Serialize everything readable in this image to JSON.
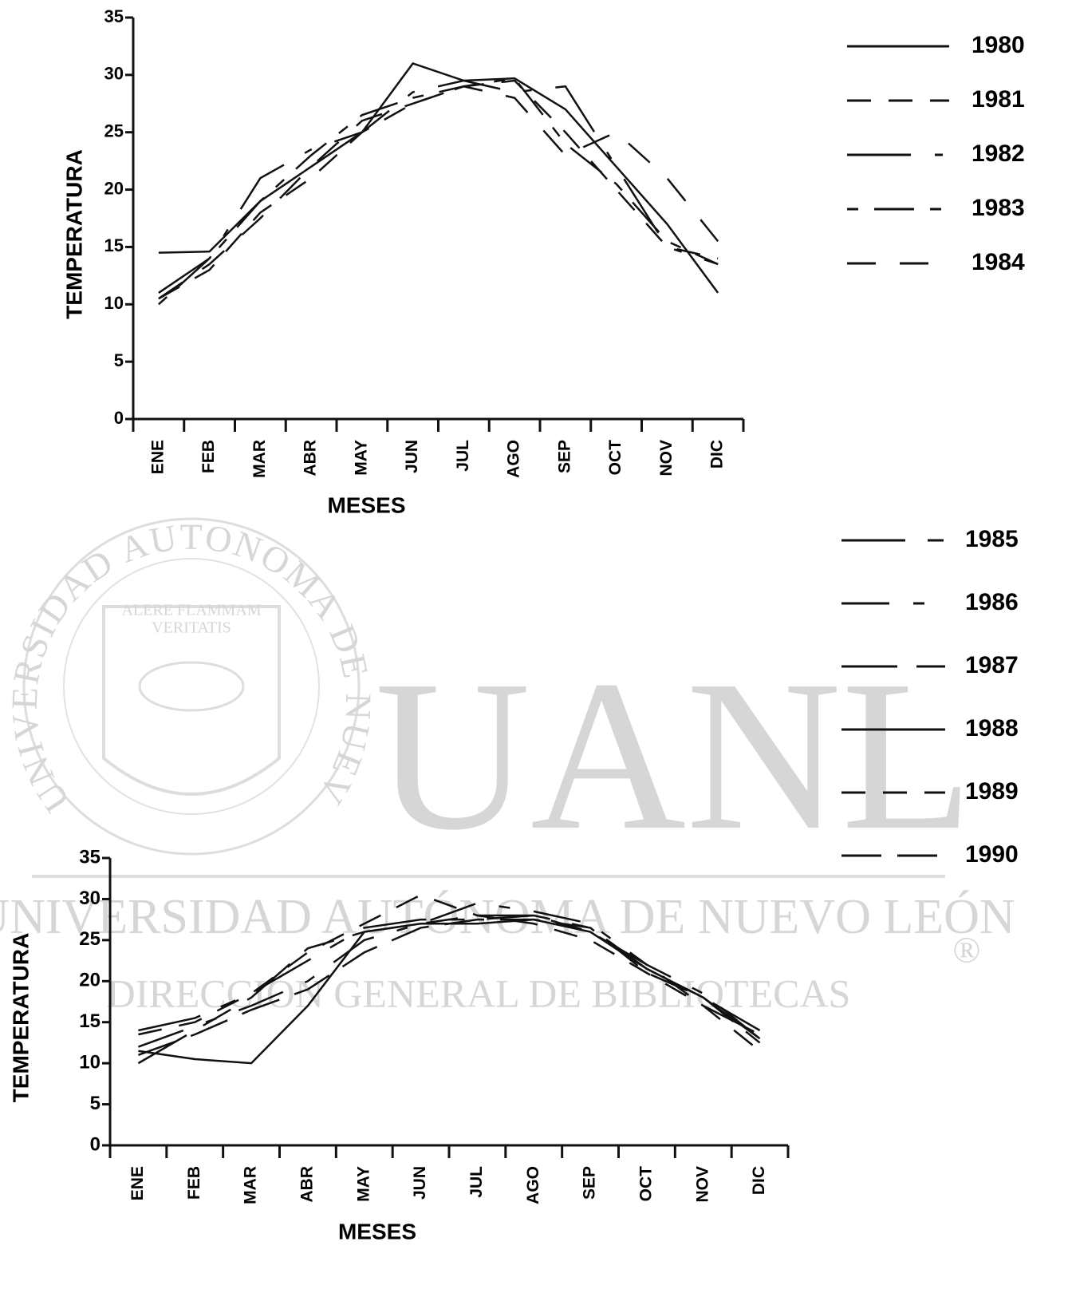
{
  "chart_data": [
    {
      "type": "line",
      "ylabel": "TEMPERATURA",
      "xlabel": "MESES",
      "categories": [
        "ENE",
        "FEB",
        "MAR",
        "ABR",
        "MAY",
        "JUN",
        "JUL",
        "AGO",
        "SEP",
        "OCT",
        "NOV",
        "DIC"
      ],
      "ylim": [
        0,
        35
      ],
      "yticks": [
        0,
        5,
        10,
        15,
        20,
        25,
        30,
        35
      ],
      "series": [
        {
          "name": "1980",
          "color": "#111",
          "dash": "none",
          "values": [
            14.5,
            14.6,
            19,
            22,
            25,
            31,
            29.5,
            29.7,
            27,
            22,
            17,
            11
          ]
        },
        {
          "name": "1981",
          "color": "#111",
          "dash": "30 22",
          "values": [
            10.5,
            13,
            18,
            21,
            25,
            27.5,
            29,
            29.5,
            25,
            20,
            15,
            14
          ]
        },
        {
          "name": "1982",
          "color": "#111",
          "dash": "80 30 10 30",
          "values": [
            11,
            14,
            21,
            23.5,
            25,
            28.5,
            29.5,
            28.5,
            29,
            22,
            15,
            13.5
          ]
        },
        {
          "name": "1983",
          "color": "#111",
          "dash": "14 20 50 20",
          "values": [
            10,
            14,
            19,
            23,
            26.5,
            28,
            29,
            29.7,
            24,
            20.5,
            15.5,
            13.5
          ]
        },
        {
          "name": "1984",
          "color": "#111",
          "dash": "36 30",
          "values": [
            10.5,
            13.5,
            17.5,
            22,
            26,
            27.5,
            29,
            28,
            23,
            25,
            21,
            15.5
          ]
        }
      ]
    },
    {
      "type": "line",
      "ylabel": "TEMPERATURA",
      "xlabel": "MESES",
      "categories": [
        "ENE",
        "FEB",
        "MAR",
        "ABR",
        "MAY",
        "JUN",
        "JUL",
        "AGO",
        "SEP",
        "OCT",
        "NOV",
        "DIC"
      ],
      "ylim": [
        0,
        35
      ],
      "yticks": [
        0,
        5,
        10,
        15,
        20,
        25,
        30,
        35
      ],
      "series": [
        {
          "name": "1985",
          "color": "#111",
          "dash": "80 28 20 28",
          "values": [
            14,
            15.5,
            18.5,
            22.5,
            26.5,
            27.5,
            27.5,
            28,
            26.5,
            21.5,
            18,
            14
          ]
        },
        {
          "name": "1986",
          "color": "#111",
          "dash": "60 30 14 30",
          "values": [
            12,
            14.5,
            17,
            20,
            25,
            27,
            29.5,
            28.5,
            27,
            22,
            18.5,
            13
          ]
        },
        {
          "name": "1987",
          "color": "#111",
          "dash": "70 24 40 24",
          "values": [
            10,
            14,
            18,
            24,
            26,
            27,
            28,
            28,
            26,
            22,
            17,
            13.5
          ]
        },
        {
          "name": "1988",
          "color": "#111",
          "dash": "none",
          "values": [
            11.5,
            10.5,
            10,
            17,
            26,
            27,
            27,
            27.5,
            26,
            21.5,
            18,
            13
          ]
        },
        {
          "name": "1989",
          "color": "#111",
          "dash": "30 22",
          "values": [
            13.5,
            15,
            18.5,
            23.5,
            27,
            30.5,
            28,
            27,
            25,
            21,
            17,
            11.5
          ]
        },
        {
          "name": "1990",
          "color": "#111",
          "dash": "50 20",
          "values": [
            11,
            13.5,
            16.5,
            19,
            23.5,
            26.5,
            27.5,
            27.5,
            26.5,
            21,
            18,
            12.5
          ]
        }
      ]
    }
  ],
  "watermark": {
    "big": "UANL",
    "line1": "UNIVERSIDAD AUTÓNOMA DE NUEVO LEÓN",
    "line2": "DIRECCIÓN GENERAL DE BIBLIOTECAS",
    "mark": "®",
    "seal_ring": "UNIVERSIDAD AUTONOMA DE NUEVO LEON",
    "motto1": "ALERE FLAMMAM",
    "motto2": "VERITATIS"
  }
}
